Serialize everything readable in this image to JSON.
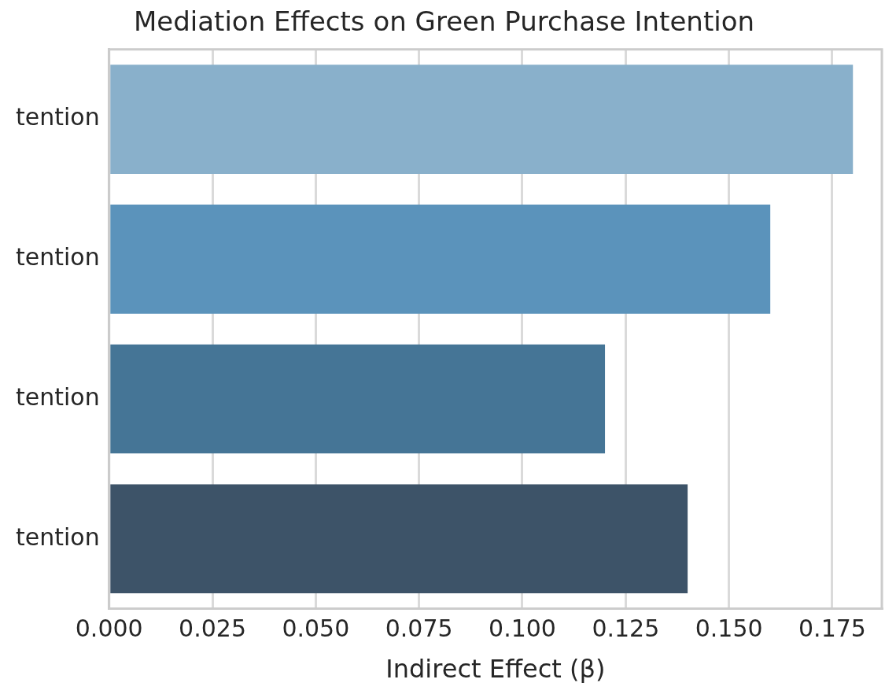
{
  "chart_data": {
    "type": "bar",
    "orientation": "horizontal",
    "title": "Mediation Effects on Green Purchase Intention",
    "xlabel": "Indirect Effect (β)",
    "categories": [
      "tention",
      "tention",
      "tention",
      "tention"
    ],
    "values": [
      0.18,
      0.16,
      0.12,
      0.14
    ],
    "colors": [
      "#89b0cb",
      "#5b93bb",
      "#457596",
      "#3d5368"
    ],
    "xlim": [
      0,
      0.187
    ],
    "xticks": [
      {
        "value": 0,
        "label": "0.000"
      },
      {
        "value": 0.025,
        "label": "0.025"
      },
      {
        "value": 0.05,
        "label": "0.050"
      },
      {
        "value": 0.075,
        "label": "0.075"
      },
      {
        "value": 0.1,
        "label": "0.100"
      },
      {
        "value": 0.125,
        "label": "0.125"
      },
      {
        "value": 0.15,
        "label": "0.150"
      },
      {
        "value": 0.175,
        "label": "0.175"
      }
    ],
    "grid": "x",
    "legend": false
  }
}
